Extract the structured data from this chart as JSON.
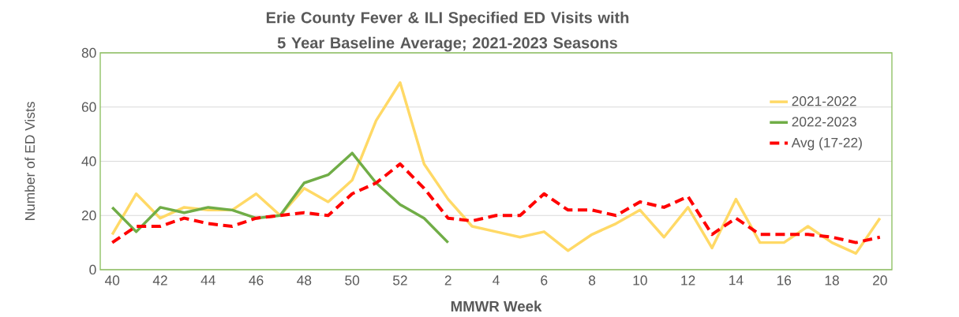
{
  "chart_data": {
    "type": "line",
    "title": "Erie County Fever & ILI Specified ED Visits with 5 Year Baseline Average; 2021-2023 Seasons",
    "xlabel": "MMWR Week",
    "ylabel": "Number of ED Vists",
    "categories": [
      "40",
      null,
      "42",
      null,
      "44",
      null,
      "46",
      null,
      "48",
      null,
      "50",
      null,
      "52",
      null,
      "2",
      null,
      "4",
      null,
      "6",
      null,
      "8",
      null,
      "10",
      null,
      "12",
      null,
      "14",
      null,
      "16",
      null,
      "18",
      null,
      "20"
    ],
    "series": [
      {
        "name": "2021-2022",
        "color": "#ffd966",
        "line_style": "solid",
        "values": [
          13,
          28,
          19,
          23,
          22,
          22,
          28,
          20,
          30,
          25,
          33,
          55,
          69,
          39,
          26,
          16,
          14,
          12,
          14,
          7,
          13,
          17,
          22,
          12,
          23,
          8,
          26,
          10,
          10,
          16,
          10,
          6,
          19
        ]
      },
      {
        "name": "2022-2023",
        "color": "#70ad47",
        "line_style": "solid",
        "values": [
          23,
          14,
          23,
          21,
          23,
          22,
          19,
          20,
          32,
          35,
          43,
          32,
          24,
          19,
          10,
          null,
          null,
          null,
          null,
          null,
          null,
          null,
          null,
          null,
          null,
          null,
          null,
          null,
          null,
          null,
          null,
          null,
          null
        ]
      },
      {
        "name": "Avg (17-22)",
        "color": "#ff0000",
        "line_style": "dashed",
        "values": [
          10,
          16,
          16,
          19,
          17,
          16,
          19,
          20,
          21,
          20,
          28,
          32,
          39,
          30,
          19,
          18,
          20,
          20,
          28,
          22,
          22,
          20,
          25,
          23,
          27,
          13,
          19,
          13,
          13,
          13,
          12,
          10,
          12
        ]
      }
    ],
    "ylim": [
      0,
      80
    ],
    "yticks": [
      0,
      20,
      40,
      60,
      80
    ],
    "grid": "y",
    "legend": "top right",
    "marker": "none"
  }
}
